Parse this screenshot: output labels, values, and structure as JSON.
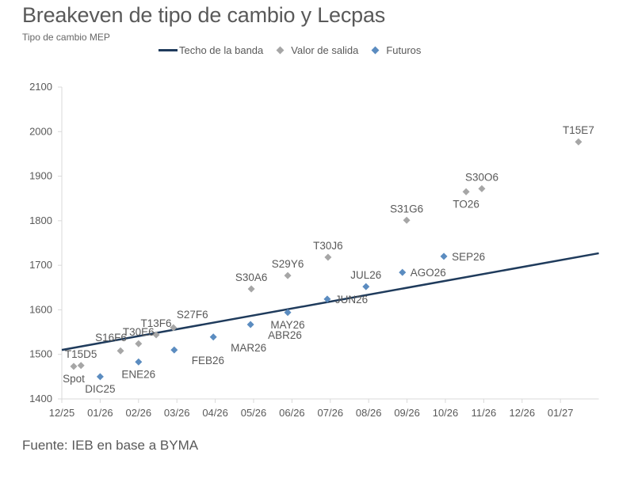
{
  "chart_data": {
    "type": "scatter",
    "title": "Breakeven de tipo de cambio y Lecpas",
    "subtitle": "Tipo de cambio MEP",
    "source": "Fuente: IEB en base a BYMA",
    "xlabel": "",
    "ylabel": "",
    "ylim": [
      1400,
      2100
    ],
    "yticks": [
      1400,
      1500,
      1600,
      1700,
      1800,
      1900,
      2000,
      2100
    ],
    "xlim_months": [
      0,
      14
    ],
    "xtick_labels": [
      "12/25",
      "01/26",
      "02/26",
      "03/26",
      "04/26",
      "05/26",
      "06/26",
      "07/26",
      "08/26",
      "09/26",
      "10/26",
      "11/26",
      "12/26",
      "01/27"
    ],
    "x_unit": "months since 12/25",
    "grid": false,
    "legend": {
      "placement": "top-center",
      "entries": [
        {
          "name": "Techo de la banda",
          "type": "line",
          "color": "#1f3b5c"
        },
        {
          "name": "Valor de salida",
          "type": "marker",
          "color": "#a6a6a6"
        },
        {
          "name": "Futuros",
          "type": "marker",
          "color": "#5b8cc0"
        }
      ]
    },
    "series": [
      {
        "name": "Techo de la banda",
        "type": "line",
        "color": "#1f3b5c",
        "x": [
          0,
          14
        ],
        "y": [
          1510,
          1727
        ]
      },
      {
        "name": "Valor de salida",
        "type": "scatter",
        "color": "#a6a6a6",
        "points": [
          {
            "label": "Spot",
            "x": 0.31,
            "y": 1473,
            "label_pos": "below"
          },
          {
            "label": "T15D5",
            "x": 0.5,
            "y": 1475,
            "label_pos": "above"
          },
          {
            "label": "S16F6",
            "x": 1.53,
            "y": 1508,
            "label_pos": "above-left"
          },
          {
            "label": "T30E6",
            "x": 2.0,
            "y": 1524,
            "label_pos": "above"
          },
          {
            "label": "T13F6",
            "x": 2.46,
            "y": 1544,
            "label_pos": "above"
          },
          {
            "label": "S27F6",
            "x": 2.91,
            "y": 1560,
            "label_pos": "above-right"
          },
          {
            "label": "S30A6",
            "x": 4.94,
            "y": 1647,
            "label_pos": "above"
          },
          {
            "label": "S29Y6",
            "x": 5.89,
            "y": 1677,
            "label_pos": "above"
          },
          {
            "label": "T30J6",
            "x": 6.94,
            "y": 1718,
            "label_pos": "above"
          },
          {
            "label": "S31G6",
            "x": 8.99,
            "y": 1801,
            "label_pos": "above"
          },
          {
            "label": "TO26",
            "x": 10.54,
            "y": 1865,
            "label_pos": "below"
          },
          {
            "label": "S30O6",
            "x": 10.95,
            "y": 1872,
            "label_pos": "above"
          },
          {
            "label": "T15E7",
            "x": 13.47,
            "y": 1977,
            "label_pos": "above"
          }
        ]
      },
      {
        "name": "Futuros",
        "type": "scatter",
        "color": "#5b8cc0",
        "points": [
          {
            "label": "DIC25",
            "x": 1.0,
            "y": 1450,
            "label_pos": "below"
          },
          {
            "label": "ENE26",
            "x": 2.0,
            "y": 1483,
            "label_pos": "below"
          },
          {
            "label": "FEB26",
            "x": 2.93,
            "y": 1510,
            "label_pos": "below-right"
          },
          {
            "label": "MAR26",
            "x": 3.95,
            "y": 1539,
            "label_pos": "below-right"
          },
          {
            "label": "ABR26",
            "x": 4.92,
            "y": 1567,
            "label_pos": "below-right"
          },
          {
            "label": "MAY26",
            "x": 5.89,
            "y": 1594,
            "label_pos": "below"
          },
          {
            "label": "JUN26",
            "x": 6.92,
            "y": 1624,
            "label_pos": "right"
          },
          {
            "label": "JUL26",
            "x": 7.93,
            "y": 1652,
            "label_pos": "above"
          },
          {
            "label": "AGO26",
            "x": 8.88,
            "y": 1684,
            "label_pos": "right"
          },
          {
            "label": "SEP26",
            "x": 9.96,
            "y": 1720,
            "label_pos": "right"
          }
        ]
      }
    ]
  }
}
